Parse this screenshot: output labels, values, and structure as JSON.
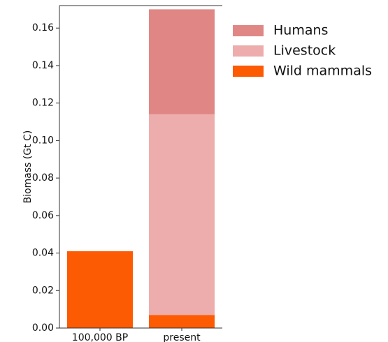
{
  "chart_data": {
    "type": "bar",
    "stacked": true,
    "categories": [
      "100,000 BP",
      "present"
    ],
    "series": [
      {
        "name": "Wild mammals",
        "color": "#fc5a03",
        "values": [
          0.041,
          0.007
        ]
      },
      {
        "name": "Livestock",
        "color": "#edadad",
        "values": [
          0,
          0.107
        ]
      },
      {
        "name": "Humans",
        "color": "#e08785",
        "values": [
          0,
          0.056
        ]
      }
    ],
    "ylabel": "Biomass (Gt C)",
    "xlabel": "",
    "ylim": [
      0,
      0.172
    ],
    "yticks": [
      "0.00",
      "0.02",
      "0.04",
      "0.06",
      "0.08",
      "0.10",
      "0.12",
      "0.14",
      "0.16"
    ],
    "legend_order": [
      "Humans",
      "Livestock",
      "Wild mammals"
    ],
    "legend_position": "top-right, outside plot",
    "grid": false
  }
}
